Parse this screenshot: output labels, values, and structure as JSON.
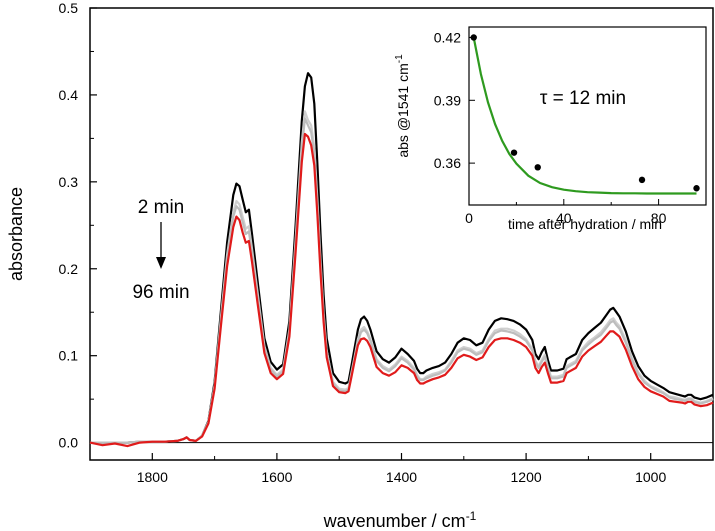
{
  "chart_data": [
    {
      "type": "line",
      "title": "",
      "xlabel": "wavenumber / cm",
      "xlabel_sup": "-1",
      "ylabel": "absorbance",
      "xlim": [
        1900,
        900
      ],
      "ylim": [
        -0.02,
        0.5
      ],
      "x_ticks": [
        1800,
        1600,
        1400,
        1200,
        1000
      ],
      "y_ticks": [
        0.0,
        0.1,
        0.2,
        0.3,
        0.4,
        0.5
      ],
      "x_tick_labels": [
        "1800",
        "1600",
        "1400",
        "1200",
        "1000"
      ],
      "y_tick_labels": [
        "0.0",
        "0.1",
        "0.2",
        "0.3",
        "0.4",
        "0.5"
      ],
      "x": [
        1900,
        1880,
        1860,
        1840,
        1820,
        1800,
        1780,
        1760,
        1750,
        1745,
        1740,
        1730,
        1720,
        1710,
        1700,
        1690,
        1680,
        1670,
        1665,
        1660,
        1655,
        1650,
        1645,
        1640,
        1630,
        1620,
        1610,
        1600,
        1590,
        1580,
        1570,
        1560,
        1555,
        1550,
        1545,
        1540,
        1535,
        1530,
        1525,
        1520,
        1510,
        1500,
        1490,
        1485,
        1480,
        1475,
        1470,
        1465,
        1460,
        1455,
        1450,
        1440,
        1430,
        1420,
        1410,
        1400,
        1390,
        1385,
        1380,
        1375,
        1370,
        1365,
        1360,
        1350,
        1340,
        1330,
        1320,
        1310,
        1300,
        1290,
        1280,
        1270,
        1260,
        1250,
        1240,
        1230,
        1220,
        1210,
        1200,
        1190,
        1185,
        1180,
        1175,
        1170,
        1165,
        1160,
        1150,
        1140,
        1135,
        1130,
        1120,
        1110,
        1100,
        1090,
        1080,
        1070,
        1065,
        1060,
        1055,
        1050,
        1040,
        1030,
        1020,
        1010,
        1000,
        990,
        980,
        970,
        960,
        950,
        945,
        940,
        935,
        930,
        920,
        910,
        900
      ],
      "series": [
        {
          "name": "2 min",
          "color": "#000000",
          "values": [
            0.0,
            0.0,
            0.0,
            0.0,
            0.001,
            0.001,
            0.001,
            0.002,
            0.004,
            0.006,
            0.003,
            0.002,
            0.008,
            0.025,
            0.07,
            0.15,
            0.23,
            0.285,
            0.298,
            0.295,
            0.28,
            0.265,
            0.268,
            0.24,
            0.18,
            0.12,
            0.093,
            0.084,
            0.09,
            0.14,
            0.25,
            0.37,
            0.41,
            0.425,
            0.42,
            0.39,
            0.32,
            0.24,
            0.17,
            0.12,
            0.08,
            0.07,
            0.068,
            0.07,
            0.09,
            0.11,
            0.13,
            0.142,
            0.145,
            0.14,
            0.13,
            0.105,
            0.096,
            0.092,
            0.098,
            0.108,
            0.102,
            0.098,
            0.094,
            0.085,
            0.08,
            0.08,
            0.083,
            0.086,
            0.088,
            0.092,
            0.102,
            0.115,
            0.12,
            0.118,
            0.112,
            0.115,
            0.13,
            0.14,
            0.143,
            0.142,
            0.14,
            0.136,
            0.13,
            0.118,
            0.102,
            0.096,
            0.104,
            0.11,
            0.095,
            0.083,
            0.083,
            0.085,
            0.096,
            0.098,
            0.102,
            0.118,
            0.126,
            0.132,
            0.138,
            0.148,
            0.153,
            0.155,
            0.15,
            0.145,
            0.128,
            0.105,
            0.088,
            0.077,
            0.071,
            0.067,
            0.063,
            0.058,
            0.056,
            0.054,
            0.053,
            0.055,
            0.055,
            0.052,
            0.05,
            0.052,
            0.055
          ]
        },
        {
          "name": "intermediate 1",
          "color": "#cfcfcf",
          "values": [
            0.0,
            0.0,
            0.0,
            0.0,
            0.001,
            0.001,
            0.001,
            0.002,
            0.004,
            0.006,
            0.003,
            0.002,
            0.008,
            0.024,
            0.066,
            0.142,
            0.216,
            0.265,
            0.278,
            0.274,
            0.26,
            0.246,
            0.249,
            0.223,
            0.167,
            0.111,
            0.086,
            0.078,
            0.084,
            0.13,
            0.233,
            0.345,
            0.381,
            0.371,
            0.365,
            0.34,
            0.279,
            0.21,
            0.149,
            0.105,
            0.07,
            0.062,
            0.061,
            0.063,
            0.082,
            0.1,
            0.119,
            0.13,
            0.133,
            0.128,
            0.119,
            0.096,
            0.088,
            0.084,
            0.09,
            0.099,
            0.094,
            0.09,
            0.086,
            0.078,
            0.073,
            0.073,
            0.076,
            0.079,
            0.081,
            0.084,
            0.094,
            0.106,
            0.11,
            0.108,
            0.103,
            0.106,
            0.119,
            0.129,
            0.131,
            0.131,
            0.129,
            0.125,
            0.119,
            0.108,
            0.094,
            0.088,
            0.095,
            0.101,
            0.087,
            0.076,
            0.076,
            0.078,
            0.088,
            0.09,
            0.094,
            0.108,
            0.116,
            0.121,
            0.127,
            0.136,
            0.141,
            0.143,
            0.138,
            0.134,
            0.118,
            0.097,
            0.081,
            0.071,
            0.065,
            0.062,
            0.058,
            0.053,
            0.052,
            0.05,
            0.049,
            0.051,
            0.051,
            0.048,
            0.046,
            0.048,
            0.051
          ]
        },
        {
          "name": "intermediate 2",
          "color": "#bdbdbd",
          "values": [
            0.0,
            0.0,
            0.0,
            0.0,
            0.001,
            0.001,
            0.001,
            0.002,
            0.004,
            0.006,
            0.003,
            0.002,
            0.008,
            0.023,
            0.065,
            0.139,
            0.212,
            0.26,
            0.272,
            0.268,
            0.254,
            0.24,
            0.243,
            0.218,
            0.163,
            0.109,
            0.084,
            0.076,
            0.082,
            0.127,
            0.228,
            0.337,
            0.373,
            0.365,
            0.357,
            0.333,
            0.273,
            0.205,
            0.146,
            0.103,
            0.068,
            0.06,
            0.059,
            0.061,
            0.08,
            0.098,
            0.116,
            0.127,
            0.13,
            0.126,
            0.117,
            0.094,
            0.086,
            0.082,
            0.088,
            0.097,
            0.092,
            0.088,
            0.084,
            0.076,
            0.072,
            0.072,
            0.074,
            0.077,
            0.079,
            0.083,
            0.092,
            0.104,
            0.108,
            0.106,
            0.101,
            0.104,
            0.117,
            0.126,
            0.129,
            0.128,
            0.126,
            0.122,
            0.117,
            0.106,
            0.092,
            0.086,
            0.093,
            0.099,
            0.085,
            0.074,
            0.074,
            0.076,
            0.086,
            0.088,
            0.092,
            0.106,
            0.113,
            0.119,
            0.124,
            0.133,
            0.138,
            0.14,
            0.135,
            0.131,
            0.115,
            0.095,
            0.079,
            0.069,
            0.064,
            0.06,
            0.057,
            0.052,
            0.05,
            0.049,
            0.048,
            0.05,
            0.05,
            0.047,
            0.045,
            0.047,
            0.05
          ]
        },
        {
          "name": "96 min",
          "color": "#e01b1b",
          "values": [
            0.0,
            -0.003,
            -0.001,
            -0.004,
            0.0,
            0.001,
            0.001,
            0.002,
            0.004,
            0.006,
            0.003,
            0.002,
            0.007,
            0.022,
            0.062,
            0.133,
            0.203,
            0.248,
            0.26,
            0.256,
            0.242,
            0.23,
            0.232,
            0.208,
            0.155,
            0.103,
            0.08,
            0.073,
            0.079,
            0.122,
            0.219,
            0.323,
            0.355,
            0.352,
            0.342,
            0.319,
            0.262,
            0.196,
            0.139,
            0.098,
            0.065,
            0.058,
            0.057,
            0.059,
            0.077,
            0.095,
            0.112,
            0.119,
            0.12,
            0.117,
            0.11,
            0.087,
            0.08,
            0.077,
            0.081,
            0.089,
            0.086,
            0.083,
            0.08,
            0.072,
            0.068,
            0.068,
            0.07,
            0.073,
            0.075,
            0.078,
            0.086,
            0.097,
            0.101,
            0.099,
            0.095,
            0.098,
            0.11,
            0.118,
            0.12,
            0.12,
            0.118,
            0.115,
            0.11,
            0.1,
            0.086,
            0.08,
            0.087,
            0.092,
            0.08,
            0.069,
            0.069,
            0.071,
            0.08,
            0.082,
            0.086,
            0.099,
            0.106,
            0.111,
            0.116,
            0.124,
            0.128,
            0.128,
            0.125,
            0.122,
            0.107,
            0.088,
            0.073,
            0.064,
            0.059,
            0.056,
            0.053,
            0.048,
            0.047,
            0.046,
            0.045,
            0.047,
            0.047,
            0.044,
            0.042,
            0.043,
            0.046
          ]
        }
      ],
      "annotations": {
        "start_label": "2 min",
        "end_label": "96 min",
        "start_color": "#000000",
        "end_color": "#e01b1b"
      }
    },
    {
      "type": "scatter",
      "title": "",
      "xlabel": "time after hydration / min",
      "ylabel": "abs @1541 cm",
      "ylabel_sup": "-1",
      "xlim": [
        0,
        100
      ],
      "ylim": [
        0.34,
        0.425
      ],
      "x_ticks": [
        0,
        40,
        80
      ],
      "y_ticks": [
        0.36,
        0.39,
        0.42
      ],
      "x_tick_labels": [
        "0",
        "40",
        "80"
      ],
      "y_tick_labels": [
        "0.36",
        "0.39",
        "0.42"
      ],
      "points": {
        "name": "measured",
        "color": "#000000",
        "x": [
          2,
          19,
          29,
          73,
          96
        ],
        "y": [
          0.42,
          0.365,
          0.358,
          0.352,
          0.348
        ]
      },
      "fit": {
        "name": "exponential fit",
        "color": "#2e9a1f",
        "x": [
          2,
          5,
          8,
          11,
          14,
          17,
          20,
          25,
          30,
          35,
          40,
          45,
          50,
          55,
          60,
          65,
          70,
          75,
          80,
          85,
          90,
          96
        ],
        "y": [
          0.42,
          0.4025,
          0.389,
          0.3786,
          0.3706,
          0.3644,
          0.3597,
          0.354,
          0.3505,
          0.3485,
          0.3473,
          0.3466,
          0.3461,
          0.3459,
          0.3457,
          0.3456,
          0.3456,
          0.3455,
          0.3455,
          0.3455,
          0.3455,
          0.3455
        ]
      },
      "annotation": {
        "prefix": "τ",
        "text": " = 12 min"
      }
    }
  ]
}
